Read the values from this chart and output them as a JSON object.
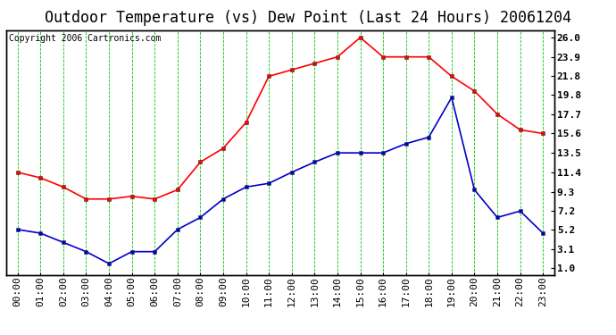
{
  "title": "Outdoor Temperature (vs) Dew Point (Last 24 Hours) 20061204",
  "copyright": "Copyright 2006 Cartronics.com",
  "hours": [
    "00:00",
    "01:00",
    "02:00",
    "03:00",
    "04:00",
    "05:00",
    "06:00",
    "07:00",
    "08:00",
    "09:00",
    "10:00",
    "11:00",
    "12:00",
    "13:00",
    "14:00",
    "15:00",
    "16:00",
    "17:00",
    "18:00",
    "19:00",
    "20:00",
    "21:00",
    "22:00",
    "23:00"
  ],
  "temp": [
    11.4,
    10.8,
    9.8,
    8.5,
    8.5,
    8.8,
    8.5,
    9.5,
    12.5,
    14.0,
    16.8,
    21.8,
    22.5,
    23.2,
    23.9,
    26.0,
    23.9,
    23.9,
    23.9,
    21.8,
    20.2,
    17.7,
    16.0,
    15.6
  ],
  "dew": [
    5.2,
    4.8,
    3.8,
    2.8,
    1.5,
    2.8,
    2.8,
    5.2,
    6.5,
    8.5,
    9.8,
    10.2,
    11.4,
    12.5,
    13.5,
    13.5,
    13.5,
    14.5,
    15.2,
    19.5,
    9.5,
    6.5,
    7.2,
    4.8
  ],
  "temp_color": "#ff0000",
  "dew_color": "#0000cc",
  "grid_color": "#00cc00",
  "bg_color": "#ffffff",
  "yticks": [
    1.0,
    3.1,
    5.2,
    7.2,
    9.3,
    11.4,
    13.5,
    15.6,
    17.7,
    19.8,
    21.8,
    23.9,
    26.0
  ],
  "ylim": [
    0.3,
    26.8
  ],
  "title_fontsize": 12,
  "tick_fontsize": 8,
  "copyright_fontsize": 7
}
